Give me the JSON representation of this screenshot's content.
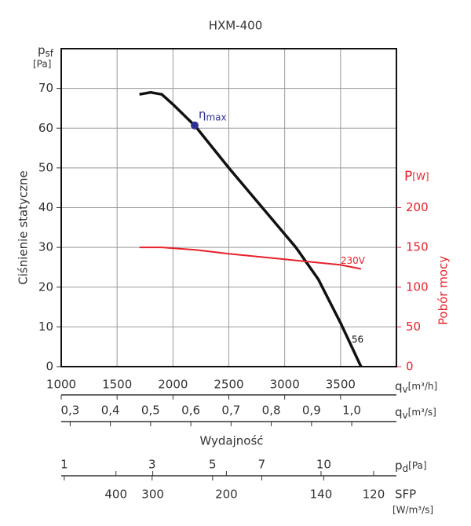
{
  "chart_data": {
    "type": "line",
    "title": "HXM-400",
    "y_label": "Ciśnienie statyczne",
    "y_symbol": "p",
    "y_symbol_sub": "sf",
    "y_unit": "[Pa]",
    "y2_label": "Pobór mocy",
    "y2_symbol": "P",
    "y2_unit": "[W]",
    "x_label": "Wydajność",
    "x_symbol": "q",
    "x_symbol_sub": "v",
    "x_unit": "[m³/h]",
    "x2_symbol": "q",
    "x2_symbol_sub": "v",
    "x2_unit": "[m³/s]",
    "pd_symbol": "p",
    "pd_symbol_sub": "d",
    "pd_unit": "[Pa]",
    "sfp_symbol": "SFP",
    "sfp_unit": "[W/m³/s]",
    "xlim": [
      1000,
      4000
    ],
    "xticks": [
      1000,
      1500,
      2000,
      2500,
      3000,
      3500
    ],
    "x2lim": [
      0.2778,
      1.1111
    ],
    "x2ticks": [
      {
        "value": 0.3,
        "label": "0,3"
      },
      {
        "value": 0.4,
        "label": "0,4"
      },
      {
        "value": 0.5,
        "label": "0,5"
      },
      {
        "value": 0.6,
        "label": "0,6"
      },
      {
        "value": 0.7,
        "label": "0,7"
      },
      {
        "value": 0.8,
        "label": "0,8"
      },
      {
        "value": 0.9,
        "label": "0,9"
      },
      {
        "value": 1.0,
        "label": "1,0"
      }
    ],
    "pdlim": [
      0.95,
      14.2
    ],
    "pdscale": "sqrt",
    "pdticks": [
      1,
      3,
      5,
      7,
      10
    ],
    "sfplim": [
      793,
      113
    ],
    "sfpscale": "reciprocal",
    "sfpticks": [
      400,
      300,
      200,
      140,
      120
    ],
    "ylim": [
      0,
      80
    ],
    "yticks": [
      0,
      10,
      20,
      30,
      40,
      50,
      60,
      70
    ],
    "y2lim": [
      0,
      400
    ],
    "y2ticks": [
      0,
      50,
      100,
      150,
      200
    ],
    "grid": true,
    "series": [
      {
        "name": "56",
        "color": "#111111",
        "x": [
          1700,
          1800,
          1900,
          2000,
          2200,
          2500,
          2800,
          3100,
          3300,
          3500,
          3683
        ],
        "values": [
          68.5,
          69,
          68.5,
          66,
          60.5,
          50,
          40,
          30,
          22,
          11,
          0
        ]
      },
      {
        "name": "230V",
        "color": "#e8202a",
        "axis": "y2",
        "x": [
          1700,
          1900,
          2200,
          2500,
          3000,
          3500,
          3683
        ],
        "values": [
          150,
          150,
          147,
          142,
          135,
          128,
          123
        ]
      }
    ],
    "point": {
      "label": "η",
      "label_sub": "max",
      "x": 2194,
      "value": 60.7,
      "color": "#2e3192"
    }
  }
}
